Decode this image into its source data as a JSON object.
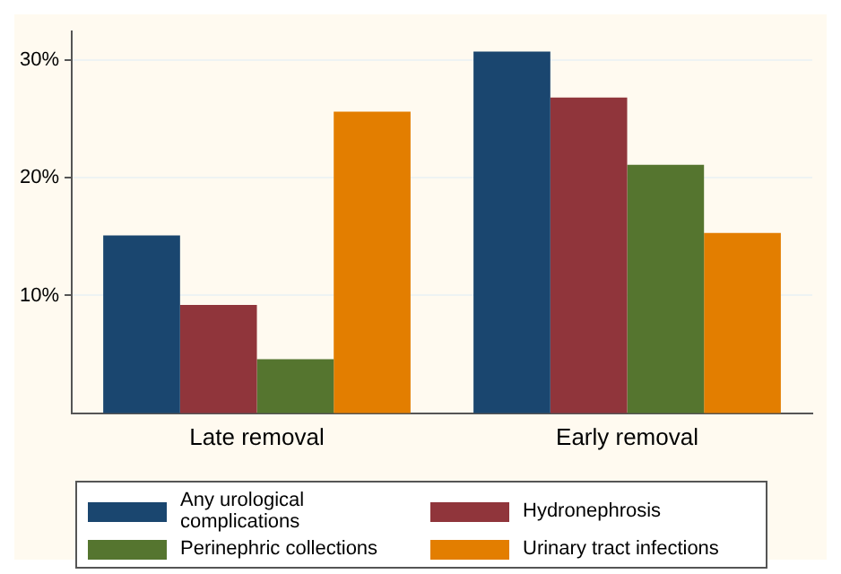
{
  "chart_data": {
    "type": "bar",
    "categories": [
      "Late removal",
      "Early removal"
    ],
    "series": [
      {
        "name": "Any urological complications",
        "color": "#1a466f",
        "values": [
          15.1,
          30.7
        ]
      },
      {
        "name": "Hydronephrosis",
        "color": "#90353b",
        "values": [
          9.2,
          26.8
        ]
      },
      {
        "name": "Perinephric collections",
        "color": "#55752f",
        "values": [
          4.6,
          21.1
        ]
      },
      {
        "name": "Urinary tract infections",
        "color": "#e37e00",
        "values": [
          25.6,
          15.3
        ]
      }
    ],
    "ylim": [
      0,
      32.4
    ],
    "yticks": [
      {
        "value": 10,
        "label": "10%"
      },
      {
        "value": 20,
        "label": "20%"
      },
      {
        "value": 30,
        "label": "30%"
      }
    ],
    "grid": "y",
    "legend": "bottom"
  }
}
